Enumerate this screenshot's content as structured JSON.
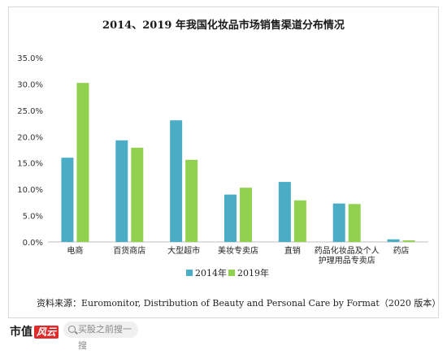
{
  "chart_data": {
    "type": "bar",
    "title": "2014、2019 年我国化妆品市场销售渠道分布情况",
    "categories": [
      "电商",
      "百货商店",
      "大型超市",
      "美妆专卖店",
      "直销",
      "药品化妆品及个人|护理用品专卖店",
      "药店"
    ],
    "series": [
      {
        "name": "2014年",
        "color": "#4bacc6",
        "values": [
          16.0,
          19.3,
          23.1,
          9.0,
          11.4,
          7.3,
          0.5
        ]
      },
      {
        "name": "2019年",
        "color": "#92d050",
        "values": [
          30.2,
          17.9,
          15.6,
          10.3,
          7.9,
          7.2,
          0.3
        ]
      }
    ],
    "ylim": [
      0,
      35
    ],
    "yticks": [
      "0.0%",
      "5.0%",
      "10.0%",
      "15.0%",
      "20.0%",
      "25.0%",
      "30.0%",
      "35.0%"
    ],
    "legend": "bottom-center",
    "source": "资料来源：Euromonitor, Distribution of Beauty and Personal Care by Format（2020 版本）",
    "xlabel": "",
    "ylabel": ""
  },
  "footer": {
    "brand": "市值",
    "brand_mark": "风云",
    "search_placeholder": "买股之前搜一搜"
  }
}
